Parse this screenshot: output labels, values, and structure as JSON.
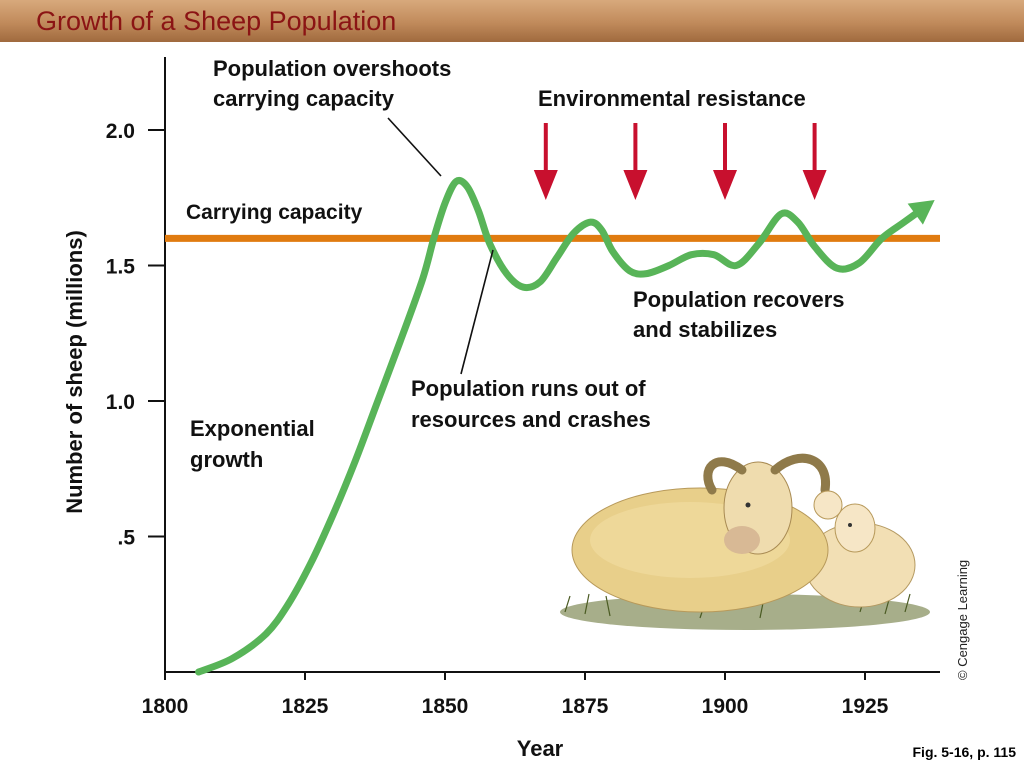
{
  "page": {
    "fig_ref": "Fig. 5-16, p. 115",
    "copyright": "© Cengage Learning"
  },
  "colors": {
    "population": "#58b458",
    "capacity": "#e07b10",
    "arrows": "#c8102e",
    "title": "#8b1414"
  },
  "chart_data": {
    "type": "line",
    "title": "Growth of a Sheep Population",
    "xlabel": "Year",
    "ylabel": "Number of sheep (millions)",
    "xlim": [
      1800,
      1940
    ],
    "ylim": [
      0,
      2.2
    ],
    "x_ticks": [
      1800,
      1825,
      1850,
      1875,
      1900,
      1925
    ],
    "x_tick_labels": [
      "1800",
      "1825",
      "1850",
      "1875",
      "1900",
      "1925"
    ],
    "y_ticks": [
      0.5,
      1.0,
      1.5,
      2.0
    ],
    "y_tick_labels": [
      ".5",
      "1.0",
      "1.5",
      "2.0"
    ],
    "carrying_capacity": {
      "label": "Carrying capacity",
      "value": 1.6
    },
    "series": [
      {
        "x": [
          1806,
          1812,
          1818,
          1822,
          1826,
          1830,
          1834,
          1838,
          1842,
          1846,
          1848,
          1850,
          1852,
          1854,
          1856,
          1858,
          1861,
          1864,
          1867,
          1870,
          1873,
          1876,
          1878,
          1880,
          1883,
          1886,
          1890,
          1894,
          1898,
          1902,
          1906,
          1910,
          1913,
          1916,
          1920,
          1924,
          1928,
          1932,
          1936
        ],
        "y": [
          0.0,
          0.05,
          0.14,
          0.25,
          0.4,
          0.58,
          0.78,
          1.0,
          1.22,
          1.45,
          1.6,
          1.73,
          1.81,
          1.79,
          1.7,
          1.58,
          1.47,
          1.42,
          1.44,
          1.53,
          1.62,
          1.66,
          1.63,
          1.55,
          1.48,
          1.47,
          1.5,
          1.54,
          1.54,
          1.5,
          1.58,
          1.69,
          1.66,
          1.57,
          1.49,
          1.51,
          1.6,
          1.66,
          1.72
        ]
      }
    ],
    "arrow_years": [
      1868,
      1884,
      1900,
      1916
    ],
    "annotations": [
      {
        "id": "overshoot",
        "lines": [
          "Population overshoots",
          "carrying capacity"
        ]
      },
      {
        "id": "resistance",
        "lines": [
          "Environmental resistance"
        ]
      },
      {
        "id": "recovers",
        "lines": [
          "Population recovers",
          "and stabilizes"
        ]
      },
      {
        "id": "crashes",
        "lines": [
          "Population runs out of",
          "resources and crashes"
        ]
      },
      {
        "id": "exponential",
        "lines": [
          "Exponential",
          "growth"
        ]
      }
    ]
  }
}
